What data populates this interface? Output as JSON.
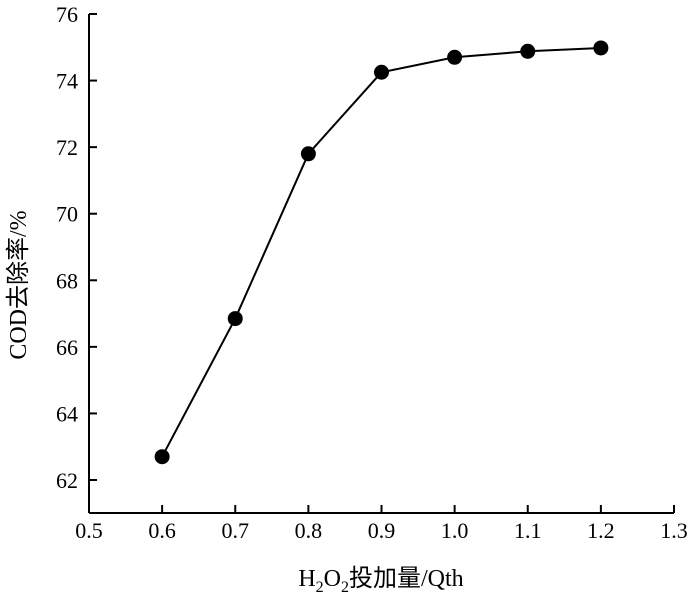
{
  "chart_data": {
    "type": "line",
    "title": "",
    "xlabel": {
      "prefix": "H",
      "sub1": "2",
      "mid": "O",
      "sub2": "2",
      "suffix": "投加量/Qth"
    },
    "ylabel": "COD去除率/%",
    "xlim": [
      0.5,
      1.3
    ],
    "ylim": [
      61,
      76
    ],
    "x_ticks": [
      "0.5",
      "0.6",
      "0.7",
      "0.8",
      "0.9",
      "1.0",
      "1.1",
      "1.2",
      "1.3"
    ],
    "y_ticks": [
      "62",
      "64",
      "66",
      "68",
      "70",
      "72",
      "74",
      "76"
    ],
    "grid": false,
    "series": [
      {
        "x": [
          0.6,
          0.7,
          0.8,
          0.9,
          1.0,
          1.1,
          1.2
        ],
        "y": [
          62.7,
          66.85,
          71.8,
          74.25,
          74.7,
          74.88,
          74.98
        ]
      }
    ],
    "colors": {
      "line": "#000000",
      "marker": "#000000"
    }
  }
}
